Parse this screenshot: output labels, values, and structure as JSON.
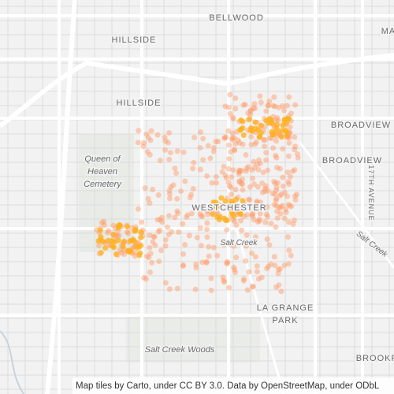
{
  "labels": {
    "bellwood": "BELLWOOD",
    "ma": "MA",
    "hillside_top": "HILLSIDE",
    "hillside": "HILLSIDE",
    "broadview_1": "BROADVIEW",
    "broadview_2": "BROADVIEW",
    "cemetery": [
      "Queen of",
      "Heaven",
      "Cemetery"
    ],
    "avenue": "17TH AVENUE",
    "westchester": "WESTCHESTER",
    "salt_creek_1": "Salt Creek",
    "salt_creek_2": "Salt Creek",
    "la_grange_park": [
      "LA GRANGE",
      "PARK"
    ],
    "woods": "Salt Creek Woods",
    "brookf": "BROOKF"
  },
  "attribution": "Map tiles by Carto, under CC BY 3.0. Data by OpenStreetMap, under ODbL"
}
